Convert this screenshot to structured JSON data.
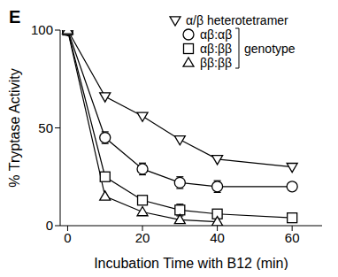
{
  "chart_data": {
    "type": "line",
    "title": "E",
    "x_label": "Incubation Time with B12 (min)",
    "y_label": "% Tryptase Activity",
    "annotations": [
      "genotype"
    ],
    "x": [
      0,
      10,
      20,
      30,
      40,
      60
    ],
    "xlim": [
      -2,
      68
    ],
    "xticks": [
      0,
      20,
      40,
      60
    ],
    "ylim": [
      0,
      100
    ],
    "yticks": [
      0,
      50,
      100
    ],
    "grid": false,
    "legend": "upper right",
    "series": [
      {
        "name": "α/β heterotetramer",
        "color": "#000000",
        "marker": "triangle-down",
        "values": [
          100,
          66,
          56,
          44,
          34,
          30
        ]
      },
      {
        "name": "αβ:αβ",
        "color": "#000000",
        "marker": "circle",
        "values": [
          100,
          45,
          29,
          22,
          20,
          20
        ],
        "errors": [
          null,
          3,
          3,
          3,
          3,
          1.5
        ]
      },
      {
        "name": "αβ:ββ",
        "color": "#000000",
        "marker": "square",
        "values": [
          100,
          25,
          13,
          8,
          6,
          4
        ],
        "errors": [
          null,
          null,
          2,
          3,
          null,
          null
        ]
      },
      {
        "name": "ββ:ββ",
        "color": "#000000",
        "marker": "triangle-up",
        "values": [
          100,
          15,
          7,
          3,
          2,
          null
        ]
      }
    ]
  }
}
